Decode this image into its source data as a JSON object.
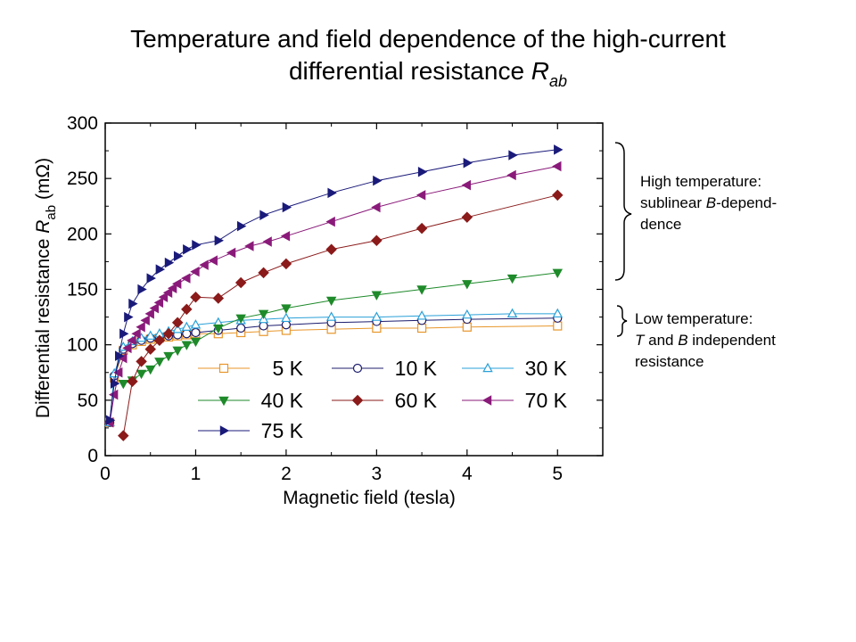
{
  "title": {
    "line1": "Temperature and field dependence of the high-current",
    "line2_text": "differential resistance ",
    "line2_symbol": "R",
    "line2_subscript": "ab"
  },
  "annotations": {
    "high_line1": "High temperature:",
    "high_line2_pre": "sublinear ",
    "high_line2_var": "B",
    "high_line2_post": "-depend-",
    "high_line3": "dence",
    "low_line1": "Low temperature:",
    "low_line2_var1": "T",
    "low_line2_mid": " and ",
    "low_line2_var2": "B",
    "low_line2_post": " independent",
    "low_line3": "resistance"
  },
  "chart_data": {
    "type": "line",
    "xlabel": "Magnetic field (tesla)",
    "ylabel_pre": "Differential resistance ",
    "ylabel_symbol": "R",
    "ylabel_sub": "ab",
    "ylabel_unit": " (mΩ)",
    "xlim": [
      0,
      5.5
    ],
    "ylim": [
      0,
      300
    ],
    "xticks": [
      0,
      1,
      2,
      3,
      4,
      5
    ],
    "yticks": [
      0,
      50,
      100,
      150,
      200,
      250,
      300
    ],
    "grid": false,
    "legend_position": "bottom-center",
    "series": [
      {
        "name": "5 K",
        "color": "#e8962a",
        "marker": "square",
        "filled": false,
        "x": [
          0.05,
          0.1,
          0.2,
          0.3,
          0.4,
          0.5,
          0.6,
          0.7,
          0.8,
          0.9,
          1.0,
          1.25,
          1.5,
          1.75,
          2.0,
          2.5,
          3.0,
          3.5,
          4.0,
          5.0
        ],
        "y": [
          30,
          70,
          95,
          100,
          103,
          105,
          106,
          107,
          108,
          109,
          110,
          110,
          111,
          112,
          113,
          114,
          115,
          115,
          116,
          117
        ]
      },
      {
        "name": "10 K",
        "color": "#1c1c6e",
        "marker": "circle",
        "filled": false,
        "x": [
          0.05,
          0.1,
          0.2,
          0.3,
          0.4,
          0.5,
          0.6,
          0.7,
          0.8,
          0.9,
          1.0,
          1.25,
          1.5,
          1.75,
          2.0,
          2.5,
          3.0,
          3.5,
          4.0,
          5.0
        ],
        "y": [
          30,
          72,
          96,
          101,
          104,
          106,
          107,
          108,
          109,
          110,
          111,
          113,
          115,
          117,
          118,
          120,
          121,
          122,
          123,
          124
        ]
      },
      {
        "name": "30 K",
        "color": "#2aa0d8",
        "marker": "triangle-up",
        "filled": false,
        "x": [
          0.05,
          0.1,
          0.2,
          0.3,
          0.4,
          0.5,
          0.6,
          0.7,
          0.8,
          0.9,
          1.0,
          1.25,
          1.5,
          1.75,
          2.0,
          2.5,
          3.0,
          3.5,
          4.0,
          4.5,
          5.0
        ],
        "y": [
          30,
          74,
          98,
          103,
          106,
          108,
          110,
          112,
          114,
          116,
          118,
          120,
          122,
          123,
          124,
          125,
          125,
          126,
          127,
          128,
          128
        ]
      },
      {
        "name": "40 K",
        "color": "#1e8a2a",
        "marker": "triangle-down",
        "filled": true,
        "x": [
          0.2,
          0.3,
          0.4,
          0.5,
          0.6,
          0.7,
          0.8,
          0.9,
          1.0,
          1.25,
          1.5,
          1.75,
          2.0,
          2.5,
          3.0,
          3.5,
          4.0,
          4.5,
          5.0
        ],
        "y": [
          65,
          68,
          74,
          78,
          85,
          90,
          95,
          100,
          103,
          115,
          124,
          128,
          133,
          140,
          145,
          150,
          155,
          160,
          165
        ]
      },
      {
        "name": "60 K",
        "color": "#8b1a1a",
        "marker": "diamond",
        "filled": true,
        "x": [
          0.2,
          0.3,
          0.4,
          0.5,
          0.6,
          0.7,
          0.8,
          0.9,
          1.0,
          1.25,
          1.5,
          1.75,
          2.0,
          2.5,
          3.0,
          3.5,
          4.0,
          5.0
        ],
        "y": [
          18,
          67,
          85,
          96,
          104,
          110,
          120,
          132,
          143,
          142,
          156,
          165,
          173,
          186,
          194,
          205,
          215,
          235
        ]
      },
      {
        "name": "70 K",
        "color": "#8a1a7a",
        "marker": "triangle-left",
        "filled": true,
        "x": [
          0.05,
          0.1,
          0.15,
          0.2,
          0.25,
          0.3,
          0.35,
          0.4,
          0.45,
          0.5,
          0.55,
          0.6,
          0.65,
          0.7,
          0.75,
          0.8,
          0.9,
          1.0,
          1.1,
          1.2,
          1.4,
          1.6,
          1.8,
          2.0,
          2.5,
          3.0,
          3.5,
          4.0,
          4.5,
          5.0
        ],
        "y": [
          30,
          55,
          75,
          88,
          97,
          104,
          110,
          116,
          122,
          128,
          133,
          138,
          143,
          147,
          151,
          155,
          160,
          166,
          172,
          176,
          183,
          189,
          193,
          198,
          211,
          224,
          235,
          244,
          253,
          261
        ]
      },
      {
        "name": "75 K",
        "color": "#1a1a7a",
        "marker": "triangle-right",
        "filled": true,
        "x": [
          0.05,
          0.1,
          0.15,
          0.2,
          0.25,
          0.3,
          0.4,
          0.5,
          0.6,
          0.7,
          0.8,
          0.9,
          1.0,
          1.25,
          1.5,
          1.75,
          2.0,
          2.5,
          3.0,
          3.5,
          4.0,
          4.5,
          5.0
        ],
        "y": [
          32,
          65,
          90,
          110,
          125,
          137,
          150,
          160,
          168,
          174,
          180,
          186,
          190,
          194,
          207,
          217,
          224,
          237,
          248,
          256,
          264,
          271,
          276
        ]
      }
    ]
  }
}
